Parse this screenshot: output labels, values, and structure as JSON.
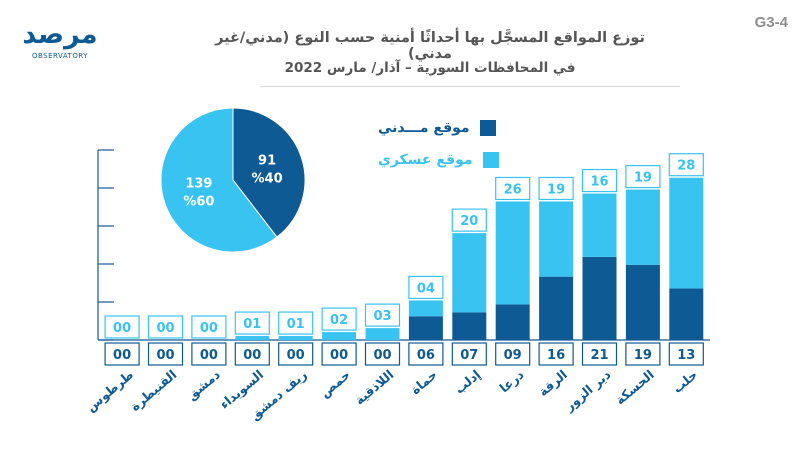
{
  "header": {
    "code": "G3-4",
    "title_line1": "توزع المواقع المسجَّل بها أحداثًا أمنية حسب النوع (مدني/غير مدني)",
    "title_line2": "في المحافظات السورية – آذار/ مارس 2022"
  },
  "logo": {
    "main": "مرصد",
    "sub": "OBSERVATORY"
  },
  "colors": {
    "civil": "#0d5a94",
    "military": "#38c3f1",
    "axis": "#17599a",
    "title": "#555555"
  },
  "chart_data": [
    {
      "type": "bar",
      "stacked": true,
      "categories": [
        "حلب",
        "الحسكة",
        "دير الزور",
        "الرقة",
        "درعا",
        "إدلب",
        "حماة",
        "اللاذقية",
        "حمص",
        "ريف دمشق",
        "السويداء",
        "دمشق",
        "القنيطرة",
        "طرطوس"
      ],
      "series": [
        {
          "name": "موقع مـــدني",
          "labels": [
            "13",
            "19",
            "21",
            "16",
            "09",
            "07",
            "06",
            "00",
            "00",
            "00",
            "00",
            "00",
            "00",
            "00"
          ],
          "values": [
            13,
            19,
            21,
            16,
            9,
            7,
            6,
            0,
            0,
            0,
            0,
            0,
            0,
            0
          ]
        },
        {
          "name": "موقع عسكري",
          "labels": [
            "28",
            "19",
            "16",
            "19",
            "26",
            "20",
            "04",
            "03",
            "02",
            "01",
            "01",
            "00",
            "00",
            "00"
          ],
          "values": [
            28,
            19,
            16,
            19,
            26,
            20,
            4,
            3,
            2,
            1,
            1,
            0,
            0,
            0
          ]
        }
      ],
      "ylim": [
        0,
        48
      ],
      "legend": [
        {
          "label": "موقع مـــدني",
          "series": 0
        },
        {
          "label": "موقع عسكري",
          "series": 1
        }
      ],
      "legend_position": "top-center"
    },
    {
      "type": "pie",
      "slices": [
        {
          "name": "موقع مـــدني",
          "value": 91,
          "value_label": "91",
          "percent_label": "%40"
        },
        {
          "name": "موقع عسكري",
          "value": 139,
          "value_label": "139",
          "percent_label": "%60"
        }
      ],
      "legend_position": "none"
    }
  ]
}
